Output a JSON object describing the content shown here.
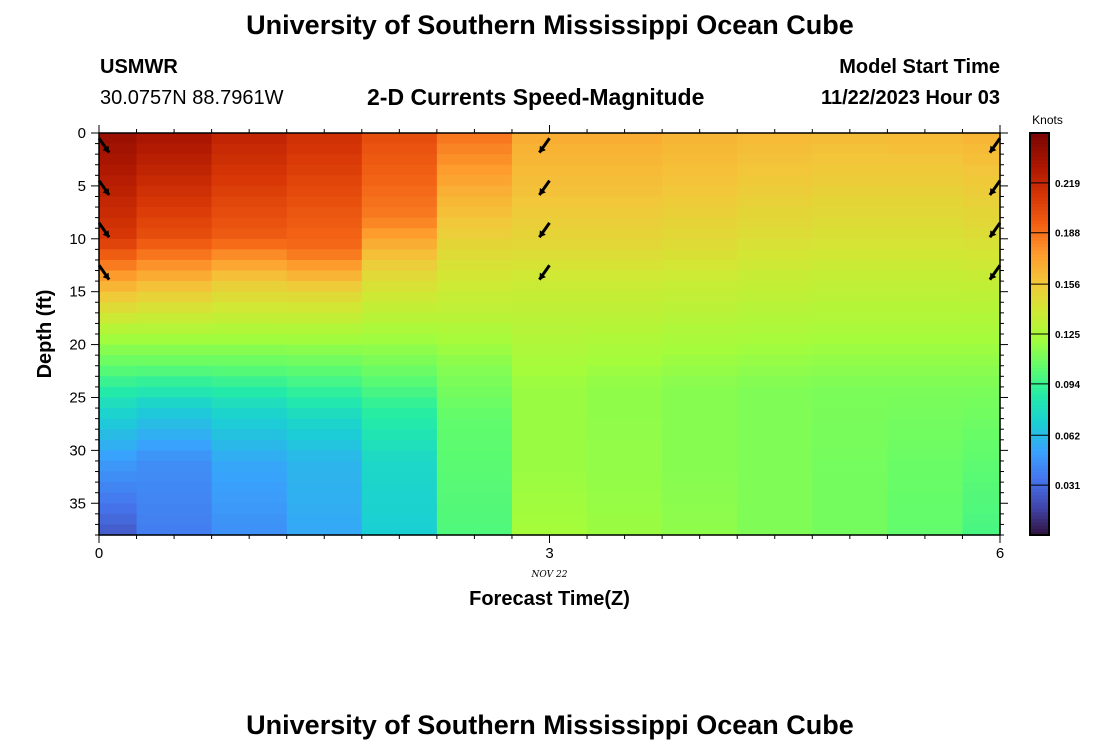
{
  "header": {
    "title": "University of Southern Mississippi Ocean Cube",
    "station": "USMWR",
    "location": "30.0757N  88.7961W",
    "subtitle": "2-D Currents Speed-Magnitude",
    "model_label": "Model Start Time",
    "model_time": "11/22/2023 Hour 03"
  },
  "footer": {
    "title": "University of Southern Mississippi Ocean Cube"
  },
  "chart_data": {
    "type": "heatmap",
    "title": "2-D Currents Speed-Magnitude",
    "xlabel": "Forecast Time(Z)",
    "ylabel": "Depth (ft)",
    "xlim": [
      0,
      6
    ],
    "ylim": [
      0,
      38
    ],
    "y_inverted": true,
    "x_ticks": [
      "0",
      "3",
      "6"
    ],
    "x_tick_values": [
      0,
      3,
      6
    ],
    "x_date_label": "NOV 22",
    "y_ticks": [
      "0",
      "5",
      "10",
      "15",
      "20",
      "25",
      "30",
      "35"
    ],
    "y_tick_values": [
      0,
      5,
      10,
      15,
      20,
      25,
      30,
      35
    ],
    "x_edges": [
      0,
      0.25,
      0.75,
      1.25,
      1.75,
      2.25,
      2.75,
      3.25,
      3.75,
      4.25,
      4.75,
      5.25,
      5.75,
      6
    ],
    "depth_step": 1,
    "depth_max": 38,
    "column_profiles": [
      [
        [
          0,
          0.238
        ],
        [
          10,
          0.21
        ],
        [
          15,
          0.16
        ],
        [
          19,
          0.125
        ],
        [
          22,
          0.105
        ],
        [
          26,
          0.075
        ],
        [
          31,
          0.05
        ],
        [
          38,
          0.025
        ]
      ],
      [
        [
          0,
          0.232
        ],
        [
          10,
          0.2
        ],
        [
          15,
          0.155
        ],
        [
          19,
          0.125
        ],
        [
          22,
          0.105
        ],
        [
          26,
          0.07
        ],
        [
          31,
          0.045
        ],
        [
          38,
          0.038
        ]
      ],
      [
        [
          0,
          0.222
        ],
        [
          10,
          0.195
        ],
        [
          14,
          0.155
        ],
        [
          19,
          0.125
        ],
        [
          22,
          0.105
        ],
        [
          26,
          0.075
        ],
        [
          31,
          0.055
        ],
        [
          38,
          0.045
        ]
      ],
      [
        [
          0,
          0.215
        ],
        [
          11,
          0.19
        ],
        [
          15,
          0.15
        ],
        [
          19,
          0.125
        ],
        [
          23,
          0.1
        ],
        [
          27,
          0.075
        ],
        [
          31,
          0.06
        ],
        [
          38,
          0.055
        ]
      ],
      [
        [
          0,
          0.202
        ],
        [
          8,
          0.185
        ],
        [
          13,
          0.15
        ],
        [
          18,
          0.128
        ],
        [
          22,
          0.11
        ],
        [
          26,
          0.09
        ],
        [
          31,
          0.075
        ],
        [
          38,
          0.07
        ]
      ],
      [
        [
          0,
          0.188
        ],
        [
          6,
          0.165
        ],
        [
          12,
          0.145
        ],
        [
          17,
          0.132
        ],
        [
          22,
          0.115
        ],
        [
          27,
          0.105
        ],
        [
          38,
          0.1
        ]
      ],
      [
        [
          0,
          0.168
        ],
        [
          5,
          0.16
        ],
        [
          10,
          0.15
        ],
        [
          14,
          0.138
        ],
        [
          18,
          0.13
        ],
        [
          24,
          0.12
        ],
        [
          32,
          0.12
        ],
        [
          38,
          0.123
        ]
      ],
      [
        [
          0,
          0.168
        ],
        [
          5,
          0.16
        ],
        [
          10,
          0.15
        ],
        [
          14,
          0.138
        ],
        [
          18,
          0.13
        ],
        [
          24,
          0.117
        ],
        [
          32,
          0.118
        ],
        [
          38,
          0.12
        ]
      ],
      [
        [
          0,
          0.165
        ],
        [
          5,
          0.158
        ],
        [
          10,
          0.148
        ],
        [
          14,
          0.137
        ],
        [
          18,
          0.128
        ],
        [
          24,
          0.115
        ],
        [
          32,
          0.115
        ],
        [
          38,
          0.117
        ]
      ],
      [
        [
          0,
          0.163
        ],
        [
          5,
          0.155
        ],
        [
          10,
          0.145
        ],
        [
          14,
          0.135
        ],
        [
          18,
          0.127
        ],
        [
          24,
          0.113
        ],
        [
          32,
          0.113
        ],
        [
          38,
          0.113
        ]
      ],
      [
        [
          0,
          0.162
        ],
        [
          5,
          0.153
        ],
        [
          10,
          0.143
        ],
        [
          14,
          0.134
        ],
        [
          18,
          0.126
        ],
        [
          24,
          0.112
        ],
        [
          32,
          0.11
        ],
        [
          38,
          0.11
        ]
      ],
      [
        [
          0,
          0.163
        ],
        [
          5,
          0.153
        ],
        [
          10,
          0.143
        ],
        [
          14,
          0.134
        ],
        [
          18,
          0.126
        ],
        [
          24,
          0.112
        ],
        [
          32,
          0.107
        ],
        [
          38,
          0.105
        ]
      ],
      [
        [
          0,
          0.165
        ],
        [
          5,
          0.155
        ],
        [
          10,
          0.145
        ],
        [
          14,
          0.135
        ],
        [
          18,
          0.126
        ],
        [
          24,
          0.112
        ],
        [
          32,
          0.103
        ],
        [
          38,
          0.098
        ]
      ]
    ],
    "vectors": [
      {
        "x": 0,
        "depth": 0.5,
        "direction": "SE"
      },
      {
        "x": 0,
        "depth": 4.5,
        "direction": "SE"
      },
      {
        "x": 0,
        "depth": 8.5,
        "direction": "SE"
      },
      {
        "x": 0,
        "depth": 12.5,
        "direction": "SE"
      },
      {
        "x": 3,
        "depth": 0.5,
        "direction": "SW"
      },
      {
        "x": 3,
        "depth": 4.5,
        "direction": "SW"
      },
      {
        "x": 3,
        "depth": 8.5,
        "direction": "SW"
      },
      {
        "x": 3,
        "depth": 12.5,
        "direction": "SW"
      },
      {
        "x": 6,
        "depth": 0.5,
        "direction": "SW"
      },
      {
        "x": 6,
        "depth": 4.5,
        "direction": "SW"
      },
      {
        "x": 6,
        "depth": 8.5,
        "direction": "SW"
      },
      {
        "x": 6,
        "depth": 12.5,
        "direction": "SW"
      }
    ],
    "colorbar": {
      "units": "Knots",
      "min": 0.0,
      "max": 0.25,
      "tick_labels": [
        "0.031",
        "0.062",
        "0.094",
        "0.125",
        "0.156",
        "0.188",
        "0.219"
      ],
      "tick_values": [
        0.031,
        0.062,
        0.094,
        0.125,
        0.156,
        0.188,
        0.219
      ],
      "colormap_stops": [
        [
          0.0,
          "#30123b"
        ],
        [
          0.07,
          "#4145ab"
        ],
        [
          0.14,
          "#4675ed"
        ],
        [
          0.21,
          "#39a2fc"
        ],
        [
          0.28,
          "#1bcfd4"
        ],
        [
          0.35,
          "#24eca6"
        ],
        [
          0.42,
          "#61fc6c"
        ],
        [
          0.49,
          "#a4fc3b"
        ],
        [
          0.56,
          "#d1e834"
        ],
        [
          0.63,
          "#f3c63a"
        ],
        [
          0.7,
          "#fe9b2d"
        ],
        [
          0.77,
          "#f36315"
        ],
        [
          0.84,
          "#d93806"
        ],
        [
          0.91,
          "#b11901"
        ],
        [
          1.0,
          "#7a0402"
        ]
      ]
    }
  }
}
